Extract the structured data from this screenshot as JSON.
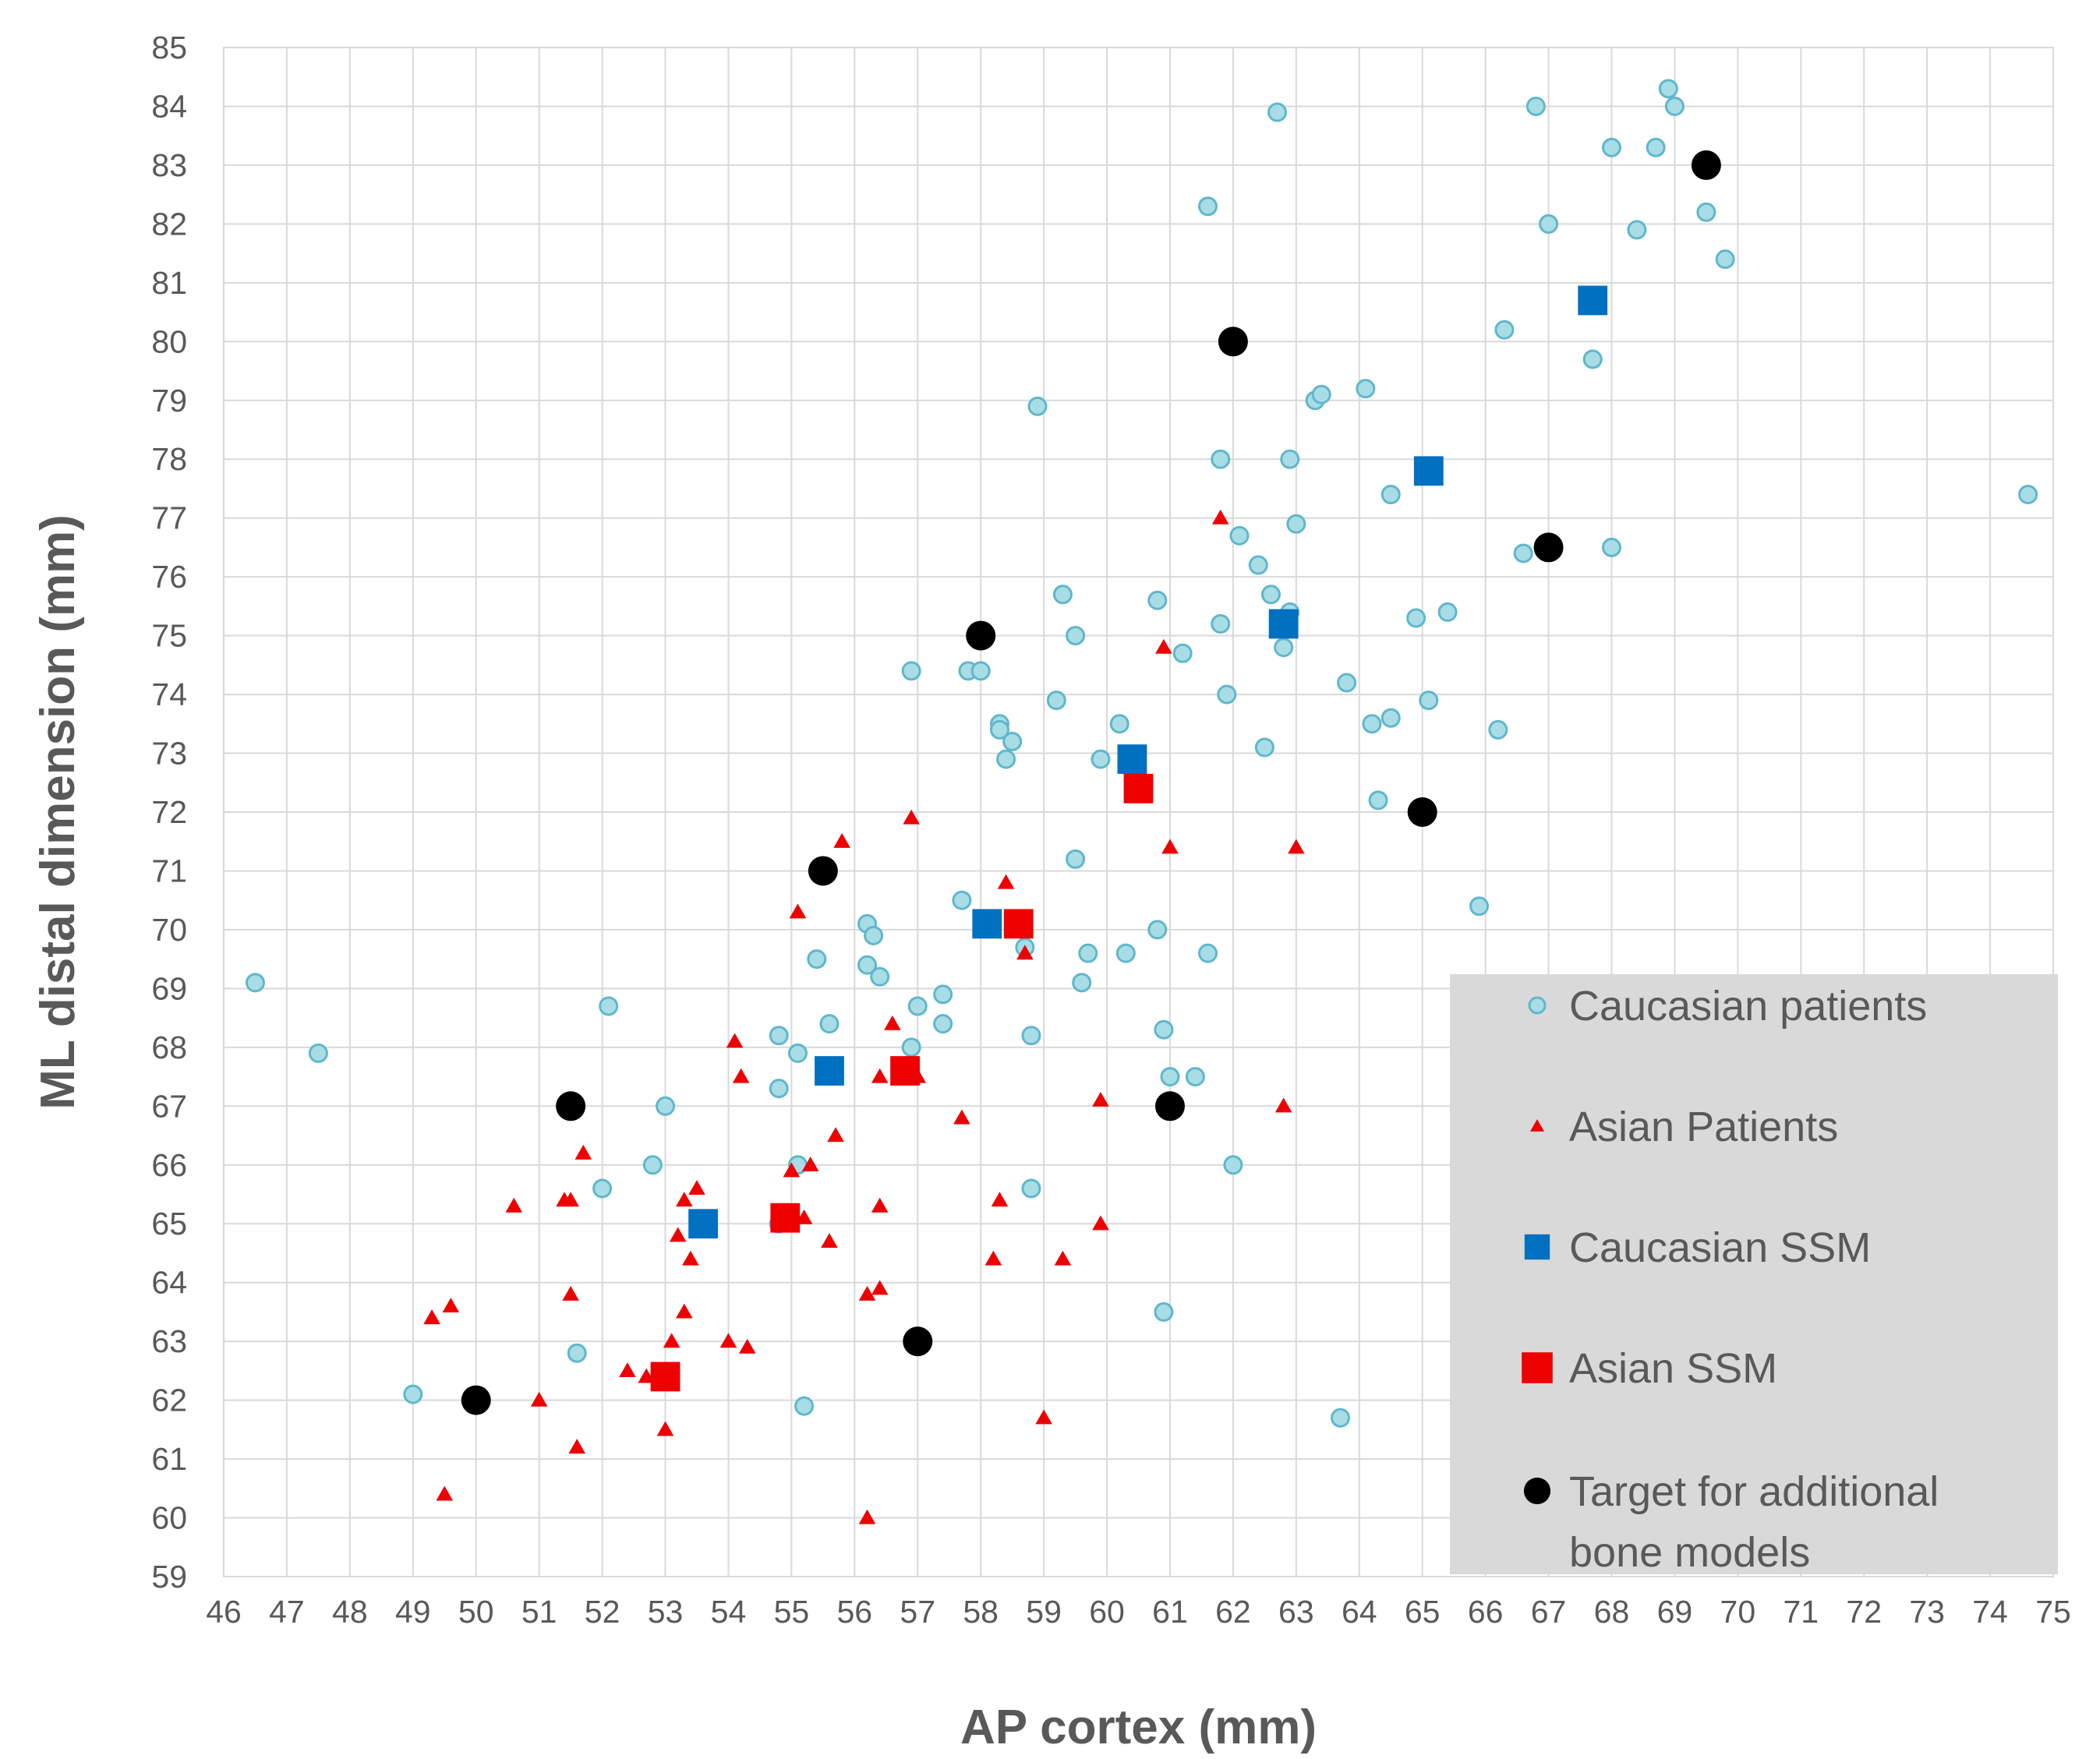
{
  "chart_data": {
    "type": "scatter",
    "title": "",
    "xlabel": "AP cortex (mm)",
    "ylabel": "ML distal dimension (mm)",
    "xlim": [
      46,
      75
    ],
    "ylim": [
      59,
      85
    ],
    "xticks": [
      "46",
      "47",
      "48",
      "49",
      "50",
      "51",
      "52",
      "53",
      "54",
      "55",
      "56",
      "57",
      "58",
      "59",
      "60",
      "61",
      "62",
      "63",
      "64",
      "65",
      "66",
      "67",
      "68",
      "69",
      "70",
      "71",
      "72",
      "73",
      "74",
      "75"
    ],
    "yticks": [
      "59",
      "60",
      "61",
      "62",
      "63",
      "64",
      "65",
      "66",
      "67",
      "68",
      "69",
      "70",
      "71",
      "72",
      "73",
      "74",
      "75",
      "76",
      "77",
      "78",
      "79",
      "80",
      "81",
      "82",
      "83",
      "84",
      "85"
    ],
    "grid": true,
    "legend_position": "bottom-right",
    "series": [
      {
        "name": "Caucasian patients",
        "marker": "circle",
        "color": "#a8dde6",
        "edge": "#5fb7cc",
        "points": [
          [
            46.5,
            69.1
          ],
          [
            47.5,
            67.9
          ],
          [
            49.0,
            62.1
          ],
          [
            51.6,
            62.8
          ],
          [
            52.0,
            65.6
          ],
          [
            52.1,
            68.7
          ],
          [
            52.8,
            66.0
          ],
          [
            53.0,
            67.0
          ],
          [
            54.8,
            68.2
          ],
          [
            54.8,
            67.3
          ],
          [
            54.8,
            65.0
          ],
          [
            55.1,
            67.9
          ],
          [
            55.1,
            66.0
          ],
          [
            55.2,
            61.9
          ],
          [
            55.4,
            69.5
          ],
          [
            55.6,
            68.4
          ],
          [
            56.2,
            70.1
          ],
          [
            56.3,
            69.9
          ],
          [
            56.2,
            69.4
          ],
          [
            56.4,
            69.2
          ],
          [
            56.9,
            74.4
          ],
          [
            56.9,
            68.0
          ],
          [
            57.0,
            68.7
          ],
          [
            57.4,
            68.9
          ],
          [
            57.4,
            68.4
          ],
          [
            57.7,
            70.5
          ],
          [
            57.8,
            74.4
          ],
          [
            58.0,
            74.4
          ],
          [
            58.3,
            73.5
          ],
          [
            58.3,
            73.4
          ],
          [
            58.5,
            73.2
          ],
          [
            58.4,
            72.9
          ],
          [
            58.7,
            69.7
          ],
          [
            58.8,
            65.6
          ],
          [
            58.8,
            68.2
          ],
          [
            58.9,
            78.9
          ],
          [
            59.2,
            73.9
          ],
          [
            59.3,
            75.7
          ],
          [
            59.5,
            75.0
          ],
          [
            59.5,
            71.2
          ],
          [
            59.6,
            69.1
          ],
          [
            59.7,
            69.6
          ],
          [
            59.9,
            72.9
          ],
          [
            60.2,
            73.5
          ],
          [
            60.3,
            69.6
          ],
          [
            60.8,
            75.6
          ],
          [
            60.8,
            70.0
          ],
          [
            60.9,
            68.3
          ],
          [
            61.0,
            67.5
          ],
          [
            60.9,
            63.5
          ],
          [
            61.2,
            74.7
          ],
          [
            61.4,
            67.5
          ],
          [
            61.6,
            82.3
          ],
          [
            61.6,
            69.6
          ],
          [
            61.8,
            78.0
          ],
          [
            61.8,
            75.2
          ],
          [
            61.9,
            74.0
          ],
          [
            62.0,
            66.0
          ],
          [
            62.1,
            76.7
          ],
          [
            62.4,
            76.2
          ],
          [
            62.5,
            73.1
          ],
          [
            62.6,
            75.7
          ],
          [
            62.7,
            83.9
          ],
          [
            62.8,
            74.8
          ],
          [
            62.9,
            75.4
          ],
          [
            62.9,
            78.0
          ],
          [
            63.0,
            76.9
          ],
          [
            63.3,
            79.0
          ],
          [
            63.4,
            79.1
          ],
          [
            63.7,
            61.7
          ],
          [
            63.8,
            74.2
          ],
          [
            64.1,
            79.2
          ],
          [
            64.2,
            73.5
          ],
          [
            64.3,
            72.2
          ],
          [
            64.5,
            73.6
          ],
          [
            64.5,
            77.4
          ],
          [
            64.9,
            75.3
          ],
          [
            65.1,
            73.9
          ],
          [
            65.4,
            75.4
          ],
          [
            65.9,
            70.4
          ],
          [
            66.2,
            73.4
          ],
          [
            66.3,
            80.2
          ],
          [
            66.6,
            76.4
          ],
          [
            66.8,
            84.0
          ],
          [
            67.0,
            82.0
          ],
          [
            67.7,
            79.7
          ],
          [
            68.0,
            83.3
          ],
          [
            68.0,
            76.5
          ],
          [
            68.4,
            81.9
          ],
          [
            68.7,
            83.3
          ],
          [
            68.9,
            84.3
          ],
          [
            69.0,
            84.0
          ],
          [
            69.5,
            82.2
          ],
          [
            69.8,
            81.4
          ],
          [
            74.6,
            77.4
          ]
        ]
      },
      {
        "name": "Asian Patients",
        "marker": "triangle",
        "color": "#ee0000",
        "points": [
          [
            49.3,
            63.4
          ],
          [
            49.5,
            60.4
          ],
          [
            49.6,
            63.6
          ],
          [
            50.6,
            65.3
          ],
          [
            51.0,
            62.0
          ],
          [
            51.4,
            65.4
          ],
          [
            51.5,
            65.4
          ],
          [
            51.5,
            63.8
          ],
          [
            51.6,
            61.2
          ],
          [
            51.7,
            66.2
          ],
          [
            52.4,
            62.5
          ],
          [
            52.7,
            62.4
          ],
          [
            53.0,
            61.5
          ],
          [
            53.1,
            63.0
          ],
          [
            53.2,
            64.8
          ],
          [
            53.3,
            65.4
          ],
          [
            53.3,
            63.5
          ],
          [
            53.4,
            64.4
          ],
          [
            53.5,
            65.6
          ],
          [
            54.0,
            63.0
          ],
          [
            54.1,
            68.1
          ],
          [
            54.2,
            67.5
          ],
          [
            54.3,
            62.9
          ],
          [
            55.0,
            65.9
          ],
          [
            55.0,
            65.0
          ],
          [
            55.1,
            70.3
          ],
          [
            55.2,
            65.1
          ],
          [
            55.3,
            66.0
          ],
          [
            55.6,
            64.7
          ],
          [
            55.7,
            66.5
          ],
          [
            55.8,
            71.5
          ],
          [
            56.2,
            63.8
          ],
          [
            56.2,
            60.0
          ],
          [
            56.4,
            65.3
          ],
          [
            56.4,
            63.9
          ],
          [
            56.4,
            67.5
          ],
          [
            56.6,
            68.4
          ],
          [
            56.9,
            71.9
          ],
          [
            57.0,
            67.5
          ],
          [
            57.7,
            66.8
          ],
          [
            58.2,
            64.4
          ],
          [
            58.3,
            65.4
          ],
          [
            58.4,
            70.8
          ],
          [
            58.7,
            69.6
          ],
          [
            59.0,
            61.7
          ],
          [
            59.3,
            64.4
          ],
          [
            59.9,
            67.1
          ],
          [
            59.9,
            65.0
          ],
          [
            60.9,
            74.8
          ],
          [
            61.0,
            71.4
          ],
          [
            61.8,
            77.0
          ],
          [
            62.8,
            67.0
          ],
          [
            63.0,
            71.4
          ]
        ]
      },
      {
        "name": "Caucasian SSM",
        "marker": "square",
        "color": "#0070c0",
        "points": [
          [
            53.6,
            65.0
          ],
          [
            55.6,
            67.6
          ],
          [
            58.1,
            70.1
          ],
          [
            60.4,
            72.9
          ],
          [
            62.8,
            75.2
          ],
          [
            65.1,
            77.8
          ],
          [
            67.7,
            80.7
          ]
        ]
      },
      {
        "name": "Asian SSM",
        "marker": "square",
        "color": "#ee0000",
        "points": [
          [
            53.0,
            62.4
          ],
          [
            54.9,
            65.1
          ],
          [
            56.8,
            67.6
          ],
          [
            58.6,
            70.1
          ],
          [
            60.5,
            72.4
          ]
        ]
      },
      {
        "name": "Target for additional bone models",
        "marker": "circle",
        "color": "#000000",
        "points": [
          [
            50.0,
            62.0
          ],
          [
            51.5,
            67.0
          ],
          [
            55.5,
            71.0
          ],
          [
            57.0,
            63.0
          ],
          [
            58.0,
            75.0
          ],
          [
            61.0,
            67.0
          ],
          [
            62.0,
            80.0
          ],
          [
            65.0,
            72.0
          ],
          [
            67.0,
            76.5
          ],
          [
            69.5,
            83.0
          ]
        ]
      }
    ],
    "legend_labels": [
      [
        "Caucasian patients"
      ],
      [
        "Asian Patients"
      ],
      [
        "Caucasian SSM"
      ],
      [
        "Asian SSM"
      ],
      [
        "Target for additional",
        "bone models"
      ]
    ]
  }
}
